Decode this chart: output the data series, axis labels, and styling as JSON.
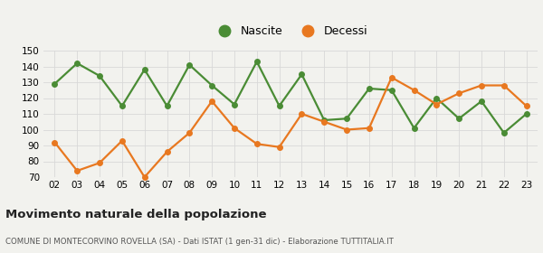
{
  "years": [
    "02",
    "03",
    "04",
    "05",
    "06",
    "07",
    "08",
    "09",
    "10",
    "11",
    "12",
    "13",
    "14",
    "15",
    "16",
    "17",
    "18",
    "19",
    "20",
    "21",
    "22",
    "23"
  ],
  "nascite": [
    129,
    142,
    134,
    115,
    138,
    115,
    141,
    128,
    116,
    143,
    115,
    135,
    106,
    107,
    126,
    125,
    101,
    120,
    107,
    118,
    98,
    110
  ],
  "decessi": [
    92,
    74,
    79,
    93,
    70,
    86,
    98,
    118,
    101,
    91,
    89,
    110,
    105,
    100,
    101,
    133,
    125,
    116,
    123,
    128,
    128,
    115
  ],
  "nascite_color": "#4a8c35",
  "decessi_color": "#e87820",
  "background_color": "#f2f2ee",
  "grid_color": "#d8d8d8",
  "ylim": [
    70,
    150
  ],
  "yticks": [
    70,
    80,
    90,
    100,
    110,
    120,
    130,
    140,
    150
  ],
  "title": "Movimento naturale della popolazione",
  "subtitle": "COMUNE DI MONTECORVINO ROVELLA (SA) - Dati ISTAT (1 gen-31 dic) - Elaborazione TUTTITALIA.IT",
  "legend_nascite": "Nascite",
  "legend_decessi": "Decessi",
  "marker_size": 4,
  "line_width": 1.6
}
